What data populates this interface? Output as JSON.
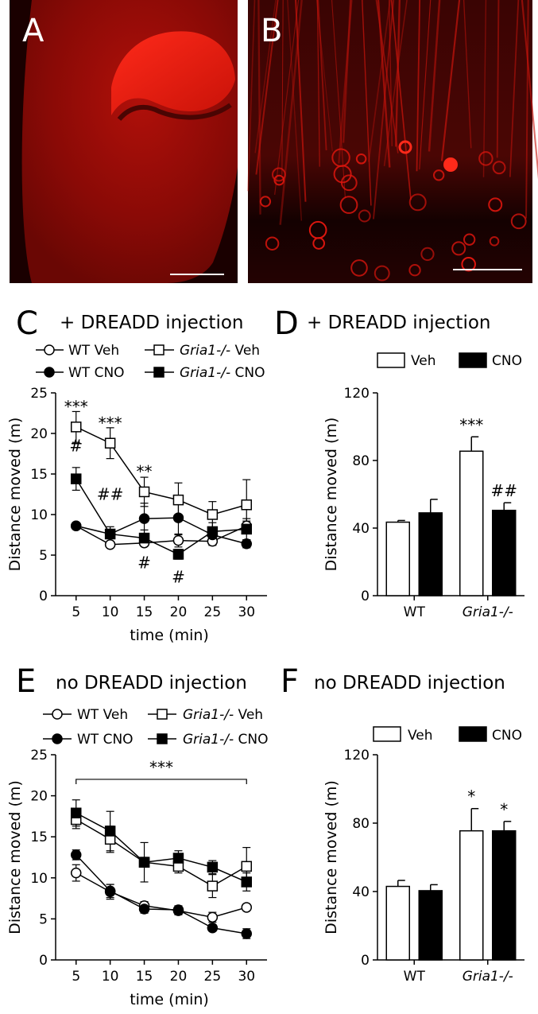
{
  "panels": {
    "A": {
      "letter": "A"
    },
    "B": {
      "letter": "B"
    },
    "C": {
      "letter": "C",
      "title": "+ DREADD injection"
    },
    "D": {
      "letter": "D",
      "title": "+ DREADD injection"
    },
    "E": {
      "letter": "E",
      "title": "no DREADD injection"
    },
    "F": {
      "letter": "F",
      "title": "no DREADD injection"
    }
  },
  "colors": {
    "micrograph_bg": "#1a0000",
    "signal": "#e0160e",
    "marker_fill_open": "#ffffff",
    "marker_fill_filled": "#000000"
  },
  "legend_line": {
    "wt_veh": "WT Veh",
    "wt_cno": "WT CNO",
    "gria_prefix": "Gria1-/-",
    "veh_suffix": " Veh",
    "cno_suffix": " CNO"
  },
  "legend_bar": {
    "veh": "Veh",
    "cno": "CNO"
  },
  "chart_data": [
    {
      "id": "C",
      "type": "line",
      "title": "+ DREADD injection",
      "xlabel": "time (min)",
      "ylabel": "Distance moved (m)",
      "x": [
        5,
        10,
        15,
        20,
        25,
        30
      ],
      "xticks": [
        "5",
        "10",
        "15",
        "20",
        "25",
        "30"
      ],
      "ylim": [
        0,
        25
      ],
      "yticks": [
        "0",
        "5",
        "10",
        "15",
        "20",
        "25"
      ],
      "series": [
        {
          "name": "WT Veh",
          "values": [
            8.6,
            6.3,
            6.5,
            6.8,
            6.7,
            8.6
          ],
          "errors": [
            0.3,
            0.3,
            0.4,
            0.8,
            0.5,
            0.6
          ]
        },
        {
          "name": "Gria1-/- Veh",
          "values": [
            20.8,
            18.8,
            12.8,
            11.8,
            10.0,
            11.2
          ],
          "errors": [
            1.9,
            1.9,
            1.8,
            2.1,
            1.6,
            3.1
          ]
        },
        {
          "name": "WT CNO",
          "values": [
            8.6,
            7.6,
            9.5,
            9.6,
            7.5,
            6.4
          ],
          "errors": [
            0.3,
            0.5,
            1.9,
            2.1,
            0.9,
            0.5
          ]
        },
        {
          "name": "Gria1-/- CNO",
          "values": [
            14.4,
            7.6,
            7.1,
            5.1,
            7.9,
            8.2
          ],
          "errors": [
            1.4,
            0.9,
            1.0,
            0.6,
            1.1,
            1.3
          ]
        }
      ],
      "annotations": [
        {
          "text": "***",
          "x": 5,
          "y": 22.6
        },
        {
          "text": "***",
          "x": 10,
          "y": 20.6
        },
        {
          "text": "**",
          "x": 15,
          "y": 14.6
        },
        {
          "text": "#",
          "x": 5,
          "y": 17.8
        },
        {
          "text": "##",
          "x": 10,
          "y": 11.8
        },
        {
          "text": "#",
          "x": 15,
          "y": 3.4
        },
        {
          "text": "#",
          "x": 20,
          "y": 1.6
        }
      ]
    },
    {
      "id": "D",
      "type": "bar",
      "title": "+ DREADD injection",
      "ylabel": "Distance moved (m)",
      "categories": [
        "WT",
        "Gria1-/-"
      ],
      "ylim": [
        0,
        120
      ],
      "yticks": [
        "0",
        "40",
        "80",
        "120"
      ],
      "series": [
        {
          "name": "Veh",
          "values": [
            43.5,
            85.5
          ],
          "errors": [
            1.0,
            8.5
          ]
        },
        {
          "name": "CNO",
          "values": [
            49.0,
            50.5
          ],
          "errors": [
            8.0,
            4.5
          ]
        }
      ],
      "annotations": [
        {
          "text": "***",
          "category": 1,
          "series": 0
        },
        {
          "text": "##",
          "category": 1,
          "series": 1
        }
      ]
    },
    {
      "id": "E",
      "type": "line",
      "title": "no DREADD injection",
      "xlabel": "time (min)",
      "ylabel": "Distance moved (m)",
      "x": [
        5,
        10,
        15,
        20,
        25,
        30
      ],
      "xticks": [
        "5",
        "10",
        "15",
        "20",
        "25",
        "30"
      ],
      "ylim": [
        0,
        25
      ],
      "yticks": [
        "0",
        "5",
        "10",
        "15",
        "20",
        "25"
      ],
      "series": [
        {
          "name": "WT Veh",
          "values": [
            10.6,
            8.3,
            6.6,
            6.0,
            5.2,
            6.4
          ],
          "errors": [
            1.0,
            0.9,
            0.5,
            0.5,
            0.6,
            0.3
          ]
        },
        {
          "name": "Gria1-/- Veh",
          "values": [
            17.1,
            14.7,
            11.9,
            11.4,
            9.0,
            11.4
          ],
          "errors": [
            1.1,
            1.6,
            2.4,
            0.8,
            1.4,
            2.3
          ]
        },
        {
          "name": "WT CNO",
          "values": [
            12.8,
            8.4,
            6.2,
            6.1,
            3.9,
            3.2
          ],
          "errors": [
            0.6,
            0.8,
            0.5,
            0.5,
            0.4,
            0.6
          ]
        },
        {
          "name": "Gria1-/- CNO",
          "values": [
            17.9,
            15.7,
            11.9,
            12.4,
            11.3,
            9.5
          ],
          "errors": [
            1.6,
            2.4,
            0.6,
            0.9,
            0.8,
            1.1
          ]
        }
      ],
      "bracket": {
        "from": 5,
        "to": 30,
        "y": 22.0,
        "text": "***"
      }
    },
    {
      "id": "F",
      "type": "bar",
      "title": "no DREADD injection",
      "ylabel": "Distance moved (m)",
      "categories": [
        "WT",
        "Gria1-/-"
      ],
      "ylim": [
        0,
        120
      ],
      "yticks": [
        "0",
        "40",
        "80",
        "120"
      ],
      "series": [
        {
          "name": "Veh",
          "values": [
            43.0,
            75.5
          ],
          "errors": [
            3.5,
            13.0
          ]
        },
        {
          "name": "CNO",
          "values": [
            40.5,
            75.5
          ],
          "errors": [
            3.5,
            5.5
          ]
        }
      ],
      "annotations": [
        {
          "text": "*",
          "category": 1,
          "series": 0
        },
        {
          "text": "*",
          "category": 1,
          "series": 1
        }
      ]
    }
  ]
}
